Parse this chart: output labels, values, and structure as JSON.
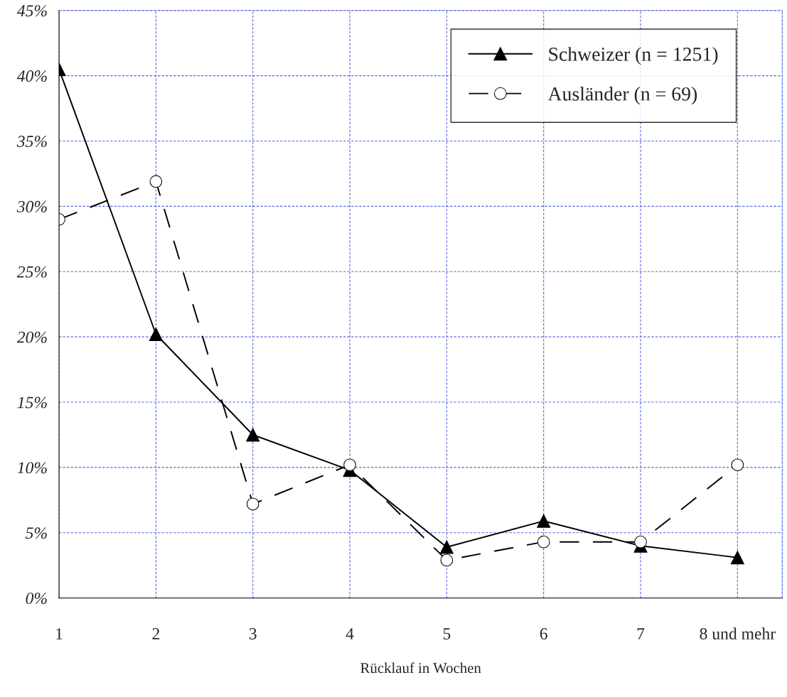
{
  "chart_data": {
    "type": "line",
    "xlabel": "Rücklauf in Wochen",
    "categories": [
      "1",
      "2",
      "3",
      "4",
      "5",
      "6",
      "7",
      "8 und mehr"
    ],
    "series": [
      {
        "name": "Schweizer (n = 1251)",
        "color": "#000000",
        "marker": "triangle",
        "line_style": "solid",
        "values": [
          40.5,
          20.2,
          12.5,
          9.8,
          3.9,
          5.9,
          4.0,
          3.1
        ]
      },
      {
        "name": "Ausländer (n = 69)",
        "color": "#000000",
        "marker": "circle",
        "line_style": "dashed",
        "values": [
          29.0,
          31.9,
          7.2,
          10.2,
          2.9,
          4.3,
          4.3,
          10.2
        ]
      }
    ],
    "ylim": [
      0,
      45
    ],
    "yticks": [
      {
        "value": 0,
        "label": "0%"
      },
      {
        "value": 5,
        "label": "5%"
      },
      {
        "value": 10,
        "label": "10%"
      },
      {
        "value": 15,
        "label": "15%"
      },
      {
        "value": 20,
        "label": "20%"
      },
      {
        "value": 25,
        "label": "25%"
      },
      {
        "value": 30,
        "label": "30%"
      },
      {
        "value": 35,
        "label": "35%"
      },
      {
        "value": 40,
        "label": "40%"
      },
      {
        "value": 45,
        "label": "45%"
      }
    ],
    "grid": true,
    "legend": "top right"
  }
}
